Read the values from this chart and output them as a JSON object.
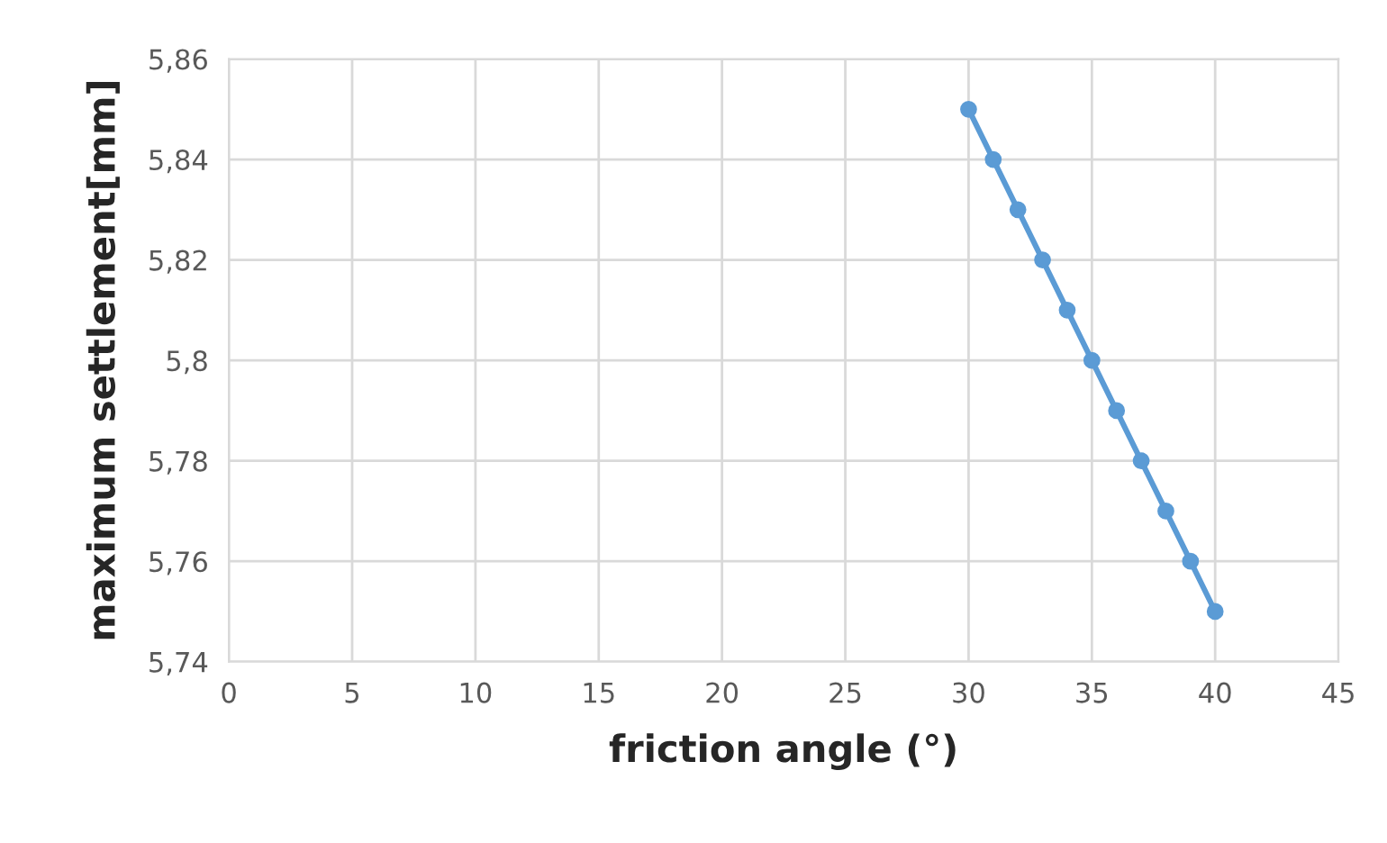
{
  "chart_data": {
    "type": "line",
    "xlabel": "friction angle (°)",
    "ylabel": "maximum settlement[mm]",
    "x": [
      30,
      31,
      32,
      33,
      34,
      35,
      36,
      37,
      38,
      39,
      40
    ],
    "series": [
      {
        "color": "#5b9bd5",
        "values": [
          5.85,
          5.84,
          5.83,
          5.82,
          5.81,
          5.8,
          5.79,
          5.78,
          5.77,
          5.76,
          5.75
        ]
      }
    ],
    "xlim": [
      0,
      45
    ],
    "xticks": [
      0,
      5,
      10,
      15,
      20,
      25,
      30,
      35,
      40,
      45
    ],
    "ylim": [
      5.74,
      5.86
    ],
    "yticks": [
      {
        "value": 5.74,
        "label": "5,74"
      },
      {
        "value": 5.76,
        "label": "5,76"
      },
      {
        "value": 5.78,
        "label": "5,78"
      },
      {
        "value": 5.8,
        "label": "5,8"
      },
      {
        "value": 5.82,
        "label": "5,82"
      },
      {
        "value": 5.84,
        "label": "5,84"
      },
      {
        "value": 5.86,
        "label": "5,86"
      }
    ],
    "grid": true,
    "marker": "circle",
    "line_style": "solid"
  }
}
